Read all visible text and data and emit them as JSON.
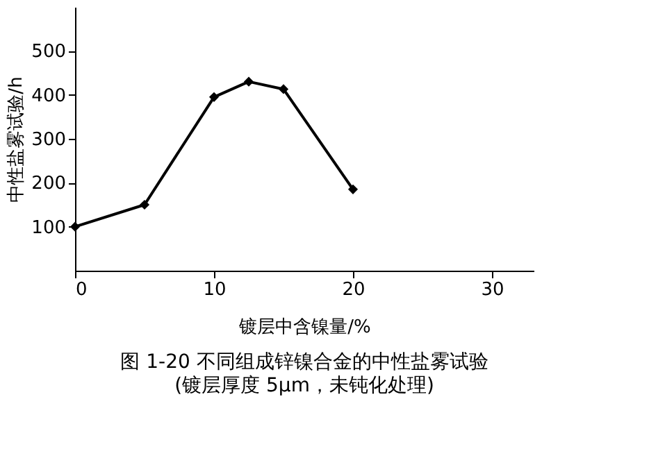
{
  "chart_data": {
    "type": "line",
    "title": "图 1-20  不同组成锌镍合金的中性盐雾试验",
    "subtitle": "(镀层厚度 5μm，未钝化处理)",
    "xlabel": "镀层中含镍量/%",
    "ylabel": "中性盐雾试验/h",
    "x": [
      0,
      5,
      10,
      12.5,
      15,
      20
    ],
    "series": [
      {
        "color": "#000000",
        "values": [
          100,
          150,
          395,
          430,
          413,
          185
        ]
      }
    ],
    "xlim": [
      0,
      33
    ],
    "xticks": [
      0,
      10,
      20,
      30
    ],
    "ylim": [
      0,
      600
    ],
    "yticks": [
      100,
      200,
      300,
      400,
      500
    ],
    "grid": false,
    "legend": false,
    "marker": "diamond",
    "line_style": "solid"
  }
}
